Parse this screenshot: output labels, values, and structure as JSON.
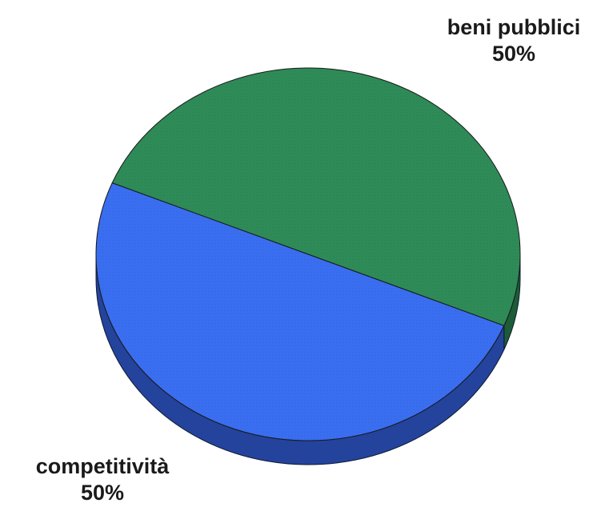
{
  "chart_data": {
    "type": "pie",
    "style": "3d-tilted",
    "slices": [
      {
        "label": "beni pubblici",
        "value": 50,
        "value_text": "50%",
        "color": "#2e8b57",
        "side_color": "#1d5c38"
      },
      {
        "label": "competitività",
        "value": 50,
        "value_text": "50%",
        "color": "#3a6ef0",
        "side_color": "#24439c"
      }
    ],
    "title": "",
    "legend": "none"
  }
}
